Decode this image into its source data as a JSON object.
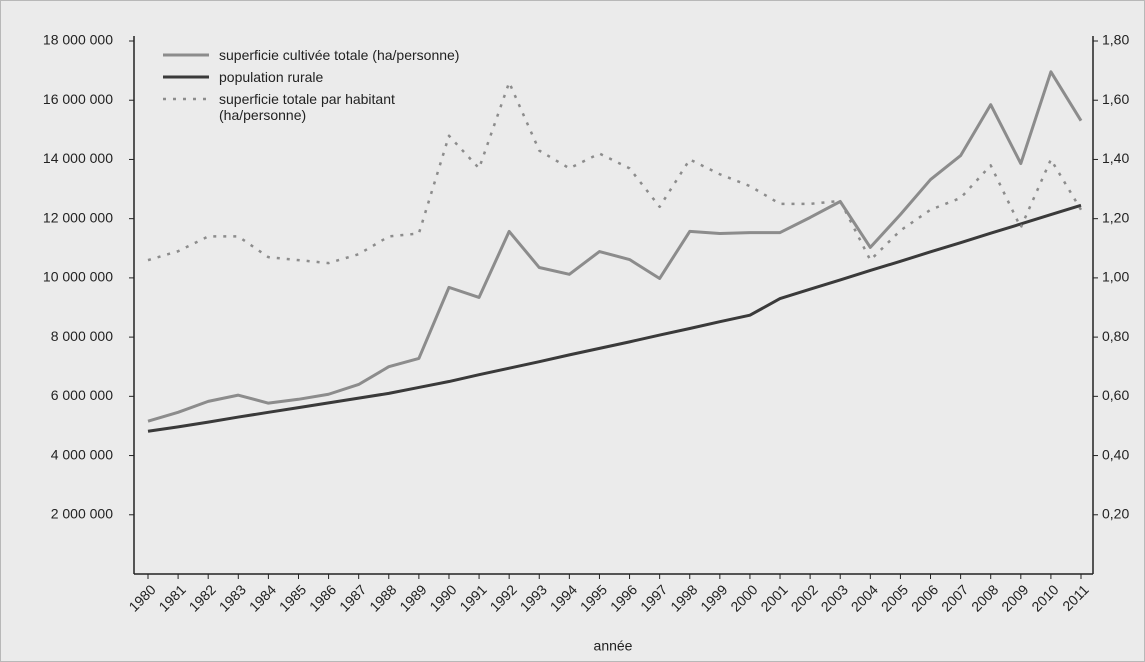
{
  "chart_data": {
    "type": "line",
    "x_label": "année",
    "categories": [
      "1980",
      "1981",
      "1982",
      "1983",
      "1984",
      "1985",
      "1986",
      "1987",
      "1988",
      "1989",
      "1990",
      "1991",
      "1992",
      "1993",
      "1994",
      "1995",
      "1996",
      "1997",
      "1998",
      "1999",
      "2000",
      "2001",
      "2002",
      "2003",
      "2004",
      "2005",
      "2006",
      "2007",
      "2008",
      "2009",
      "2010",
      "2011"
    ],
    "ylim": [
      0,
      18000000
    ],
    "yticks": [
      {
        "value": 2000000,
        "label": "2 000 000"
      },
      {
        "value": 4000000,
        "label": "4 000 000"
      },
      {
        "value": 6000000,
        "label": "6 000 000"
      },
      {
        "value": 8000000,
        "label": "8 000 000"
      },
      {
        "value": 10000000,
        "label": "10 000 000"
      },
      {
        "value": 12000000,
        "label": "12 000 000"
      },
      {
        "value": 14000000,
        "label": "14 000 000"
      },
      {
        "value": 16000000,
        "label": "16 000 000"
      },
      {
        "value": 18000000,
        "label": "18 000 000"
      }
    ],
    "y2lim": [
      0,
      1.8
    ],
    "y2ticks": [
      {
        "value": 0.2,
        "label": "0,20"
      },
      {
        "value": 0.4,
        "label": "0,40"
      },
      {
        "value": 0.6,
        "label": "0,60"
      },
      {
        "value": 0.8,
        "label": "0,80"
      },
      {
        "value": 1.0,
        "label": "1,00"
      },
      {
        "value": 1.2,
        "label": "1,20"
      },
      {
        "value": 1.4,
        "label": "1,40"
      },
      {
        "value": 1.6,
        "label": "1,60"
      },
      {
        "value": 1.8,
        "label": "1,80"
      }
    ],
    "legend": "upper left",
    "series": [
      {
        "name": "superficie cultivée totale (ha/personne)",
        "color": "#8c8c8c",
        "line_style": "solid",
        "values": [
          5160000,
          5460000,
          5830000,
          6040000,
          5770000,
          5900000,
          6070000,
          6400000,
          7000000,
          7280000,
          9680000,
          9340000,
          11570000,
          10350000,
          10120000,
          10890000,
          10620000,
          9980000,
          11570000,
          11500000,
          11530000,
          11530000,
          12040000,
          12580000,
          11030000,
          12140000,
          13320000,
          14130000,
          15850000,
          13860000,
          16960000,
          15310000
        ]
      },
      {
        "name": "population rurale",
        "color": "#3a3a3a",
        "line_style": "solid",
        "values": [
          4820000,
          4970000,
          5130000,
          5300000,
          5460000,
          5620000,
          5780000,
          5940000,
          6100000,
          6300000,
          6500000,
          6730000,
          6950000,
          7170000,
          7400000,
          7620000,
          7840000,
          8070000,
          8290000,
          8520000,
          8740000,
          9300000,
          9620000,
          9930000,
          10250000,
          10560000,
          10880000,
          11190000,
          11510000,
          11820000,
          12140000,
          12450000
        ]
      },
      {
        "name": "superficie totale par habitant (ha/personne)",
        "color": "#8c8c8c",
        "line_style": "dotted",
        "axis": "y2",
        "values": [
          1.06,
          1.09,
          1.14,
          1.14,
          1.07,
          1.06,
          1.05,
          1.08,
          1.14,
          1.15,
          1.48,
          1.37,
          1.66,
          1.43,
          1.37,
          1.42,
          1.37,
          1.24,
          1.4,
          1.35,
          1.31,
          1.25,
          1.25,
          1.26,
          1.06,
          1.16,
          1.23,
          1.27,
          1.38,
          1.17,
          1.4,
          1.23
        ]
      }
    ]
  }
}
